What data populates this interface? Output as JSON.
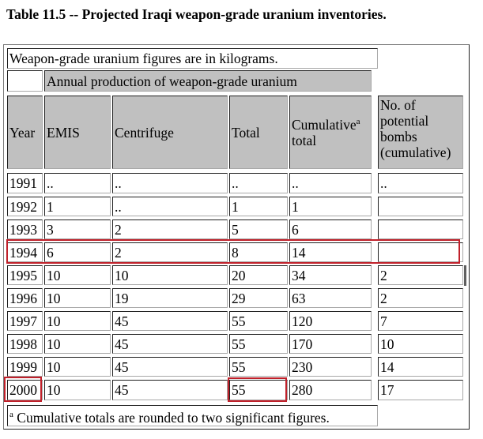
{
  "title": "Table 11.5 -- Projected Iraqi weapon-grade uranium inventories.",
  "note_units": "Weapon-grade uranium figures are in kilograms.",
  "header": {
    "annual_production": "Annual production of weapon-grade uranium",
    "year": "Year",
    "emis": "EMIS",
    "centrifuge": "Centrifuge",
    "total": "Total",
    "cumulative": "Cumulative",
    "cumulative_sup": "a",
    "cumulative_2": "total",
    "bombs": "No. of\npotential\nbombs\n(cumulative)"
  },
  "rows": [
    {
      "year": "1991",
      "emis": "..",
      "centrifuge": "..",
      "total": "..",
      "cumulative": "..",
      "bombs": ".."
    },
    {
      "year": "1992",
      "emis": "1",
      "centrifuge": "..",
      "total": "1",
      "cumulative": "1",
      "bombs": ""
    },
    {
      "year": "1993",
      "emis": "3",
      "centrifuge": "2",
      "total": "5",
      "cumulative": "6",
      "bombs": ""
    },
    {
      "year": "1994",
      "emis": "6",
      "centrifuge": "2",
      "total": "8",
      "cumulative": "14",
      "bombs": ""
    },
    {
      "year": "1995",
      "emis": "10",
      "centrifuge": "10",
      "total": "20",
      "cumulative": "34",
      "bombs": "2"
    },
    {
      "year": "1996",
      "emis": "10",
      "centrifuge": "19",
      "total": "29",
      "cumulative": "63",
      "bombs": "2"
    },
    {
      "year": "1997",
      "emis": "10",
      "centrifuge": "45",
      "total": "55",
      "cumulative": "120",
      "bombs": "7"
    },
    {
      "year": "1998",
      "emis": "10",
      "centrifuge": "45",
      "total": "55",
      "cumulative": "170",
      "bombs": "10"
    },
    {
      "year": "1999",
      "emis": "10",
      "centrifuge": "45",
      "total": "55",
      "cumulative": "230",
      "bombs": "14"
    },
    {
      "year": "2000",
      "emis": "10",
      "centrifuge": "45",
      "total": "55",
      "cumulative": "280",
      "bombs": "17"
    }
  ],
  "footnote_marker": "a",
  "footnote": "Cumulative totals are rounded to two significant figures.",
  "colors": {
    "header_bg": "#c0c0c0",
    "highlight": "#c0202a"
  }
}
